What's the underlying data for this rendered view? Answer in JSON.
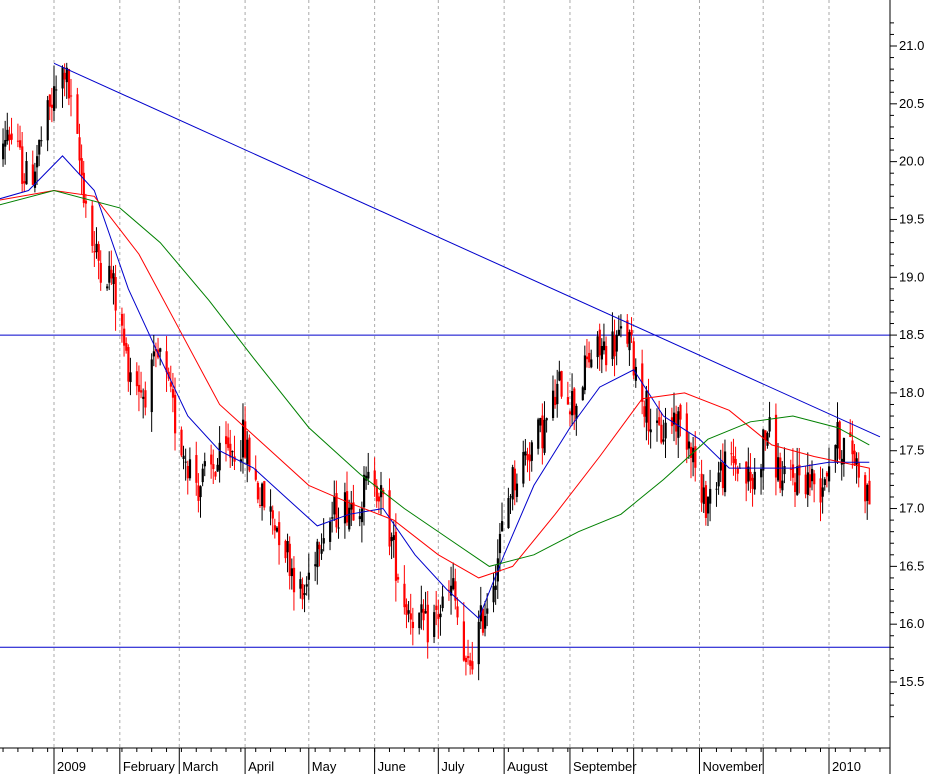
{
  "colors": {
    "background": "#ffffff",
    "up_candle": "#000000",
    "down_candle": "#ff0000",
    "trendline": "#0000cc",
    "ma_short": "#0000cc",
    "ma_mid": "#ff0000",
    "ma_long": "#008000",
    "grid": "#aaaaaa"
  },
  "chart_data": {
    "type": "candlestick",
    "title": "",
    "xlabel": "",
    "ylabel": "",
    "grid": {
      "vertical": true,
      "horizontal": false,
      "style": "dashed"
    },
    "ylim": [
      15.2,
      21.3
    ],
    "y_ticks": [
      "15.5",
      "16.0",
      "16.5",
      "17.0",
      "17.5",
      "18.0",
      "18.5",
      "19.0",
      "19.5",
      "20.0",
      "20.5",
      "21.0"
    ],
    "y_tick_values": [
      15.5,
      16.0,
      16.5,
      17.0,
      17.5,
      18.0,
      18.5,
      19.0,
      19.5,
      20.0,
      20.5,
      21.0
    ],
    "x_range": [
      "2008-12-01",
      "2010-01-31"
    ],
    "months": [
      {
        "label": "2009",
        "date": "2009-01-01"
      },
      {
        "label": "February",
        "date": "2009-02-01"
      },
      {
        "label": "March",
        "date": "2009-03-01"
      },
      {
        "label": "April",
        "date": "2009-04-01"
      },
      {
        "label": "May",
        "date": "2009-05-01"
      },
      {
        "label": "June",
        "date": "2009-06-01"
      },
      {
        "label": "July",
        "date": "2009-07-01"
      },
      {
        "label": "August",
        "date": "2009-08-01"
      },
      {
        "label": "September",
        "date": "2009-09-01"
      },
      {
        "label": "",
        "date": "2009-10-01"
      },
      {
        "label": "November",
        "date": "2009-11-01"
      },
      {
        "label": "",
        "date": "2009-12-01"
      },
      {
        "label": "2010",
        "date": "2010-01-01"
      }
    ],
    "horizontal_levels": [
      18.5,
      15.8
    ],
    "trendline": {
      "from": {
        "date": "2009-01-01",
        "value": 20.85
      },
      "to": {
        "date": "2010-01-25",
        "value": 17.62
      }
    },
    "price_path": [
      [
        "2008-12-01",
        19.7
      ],
      [
        "2008-12-10",
        20.3
      ],
      [
        "2008-12-20",
        19.8
      ],
      [
        "2008-12-31",
        20.5
      ],
      [
        "2009-01-06",
        20.8
      ],
      [
        "2009-01-13",
        20.0
      ],
      [
        "2009-01-20",
        19.2
      ],
      [
        "2009-01-28",
        19.0
      ],
      [
        "2009-02-04",
        18.3
      ],
      [
        "2009-02-12",
        18.0
      ],
      [
        "2009-02-20",
        18.3
      ],
      [
        "2009-03-01",
        17.6
      ],
      [
        "2009-03-10",
        17.2
      ],
      [
        "2009-03-20",
        17.4
      ],
      [
        "2009-03-31",
        17.6
      ],
      [
        "2009-04-08",
        17.1
      ],
      [
        "2009-04-18",
        16.8
      ],
      [
        "2009-04-28",
        16.2
      ],
      [
        "2009-05-06",
        16.8
      ],
      [
        "2009-05-15",
        17.0
      ],
      [
        "2009-05-25",
        17.1
      ],
      [
        "2009-06-01",
        17.3
      ],
      [
        "2009-06-08",
        16.8
      ],
      [
        "2009-06-15",
        16.2
      ],
      [
        "2009-06-25",
        15.95
      ],
      [
        "2009-07-01",
        16.1
      ],
      [
        "2009-07-08",
        16.3
      ],
      [
        "2009-07-14",
        15.55
      ],
      [
        "2009-07-21",
        16.0
      ],
      [
        "2009-07-28",
        16.5
      ],
      [
        "2009-08-04",
        17.2
      ],
      [
        "2009-08-12",
        17.5
      ],
      [
        "2009-08-20",
        17.7
      ],
      [
        "2009-08-28",
        18.1
      ],
      [
        "2009-09-03",
        17.9
      ],
      [
        "2009-09-10",
        18.3
      ],
      [
        "2009-09-18",
        18.4
      ],
      [
        "2009-09-28",
        18.5
      ],
      [
        "2009-10-05",
        18.0
      ],
      [
        "2009-10-12",
        17.6
      ],
      [
        "2009-10-20",
        17.8
      ],
      [
        "2009-10-28",
        17.6
      ],
      [
        "2009-11-02",
        17.0
      ],
      [
        "2009-11-10",
        17.3
      ],
      [
        "2009-11-18",
        17.4
      ],
      [
        "2009-11-26",
        17.2
      ],
      [
        "2009-12-03",
        17.7
      ],
      [
        "2009-12-10",
        17.2
      ],
      [
        "2009-12-18",
        17.3
      ],
      [
        "2009-12-28",
        17.2
      ],
      [
        "2010-01-04",
        17.6
      ],
      [
        "2010-01-12",
        17.5
      ],
      [
        "2010-01-20",
        17.1
      ]
    ],
    "moving_averages": [
      {
        "color_key": "ma_short",
        "points": [
          [
            "2008-12-01",
            19.65
          ],
          [
            "2008-12-20",
            19.75
          ],
          [
            "2009-01-05",
            20.05
          ],
          [
            "2009-01-20",
            19.75
          ],
          [
            "2009-02-05",
            18.9
          ],
          [
            "2009-02-20",
            18.3
          ],
          [
            "2009-03-05",
            17.8
          ],
          [
            "2009-03-20",
            17.5
          ],
          [
            "2009-04-05",
            17.35
          ],
          [
            "2009-04-20",
            17.1
          ],
          [
            "2009-05-05",
            16.85
          ],
          [
            "2009-05-20",
            16.95
          ],
          [
            "2009-06-05",
            17.0
          ],
          [
            "2009-06-20",
            16.6
          ],
          [
            "2009-07-05",
            16.3
          ],
          [
            "2009-07-20",
            16.05
          ],
          [
            "2009-08-01",
            16.6
          ],
          [
            "2009-08-15",
            17.2
          ],
          [
            "2009-09-01",
            17.7
          ],
          [
            "2009-09-15",
            18.05
          ],
          [
            "2009-10-01",
            18.2
          ],
          [
            "2009-10-15",
            17.8
          ],
          [
            "2009-11-01",
            17.6
          ],
          [
            "2009-11-15",
            17.35
          ],
          [
            "2009-12-01",
            17.35
          ],
          [
            "2009-12-15",
            17.35
          ],
          [
            "2010-01-01",
            17.4
          ],
          [
            "2010-01-20",
            17.4
          ]
        ]
      },
      {
        "color_key": "ma_mid",
        "points": [
          [
            "2008-12-01",
            19.65
          ],
          [
            "2009-01-01",
            19.75
          ],
          [
            "2009-01-20",
            19.7
          ],
          [
            "2009-02-10",
            19.2
          ],
          [
            "2009-03-01",
            18.55
          ],
          [
            "2009-03-20",
            17.9
          ],
          [
            "2009-04-10",
            17.55
          ],
          [
            "2009-05-01",
            17.2
          ],
          [
            "2009-05-20",
            17.05
          ],
          [
            "2009-06-10",
            16.9
          ],
          [
            "2009-07-01",
            16.6
          ],
          [
            "2009-07-20",
            16.4
          ],
          [
            "2009-08-05",
            16.5
          ],
          [
            "2009-08-25",
            16.95
          ],
          [
            "2009-09-15",
            17.45
          ],
          [
            "2009-10-05",
            17.95
          ],
          [
            "2009-10-25",
            18.0
          ],
          [
            "2009-11-15",
            17.85
          ],
          [
            "2009-12-05",
            17.55
          ],
          [
            "2009-12-25",
            17.45
          ],
          [
            "2010-01-20",
            17.35
          ]
        ]
      },
      {
        "color_key": "ma_long",
        "points": [
          [
            "2008-12-01",
            19.6
          ],
          [
            "2009-01-01",
            19.75
          ],
          [
            "2009-02-01",
            19.6
          ],
          [
            "2009-02-20",
            19.3
          ],
          [
            "2009-03-15",
            18.8
          ],
          [
            "2009-04-05",
            18.3
          ],
          [
            "2009-05-01",
            17.7
          ],
          [
            "2009-05-25",
            17.3
          ],
          [
            "2009-06-15",
            17.0
          ],
          [
            "2009-07-05",
            16.75
          ],
          [
            "2009-07-25",
            16.5
          ],
          [
            "2009-08-15",
            16.6
          ],
          [
            "2009-09-05",
            16.8
          ],
          [
            "2009-09-25",
            16.95
          ],
          [
            "2009-10-15",
            17.25
          ],
          [
            "2009-11-05",
            17.6
          ],
          [
            "2009-11-25",
            17.75
          ],
          [
            "2009-12-15",
            17.8
          ],
          [
            "2010-01-05",
            17.7
          ],
          [
            "2010-01-20",
            17.55
          ]
        ]
      }
    ]
  }
}
